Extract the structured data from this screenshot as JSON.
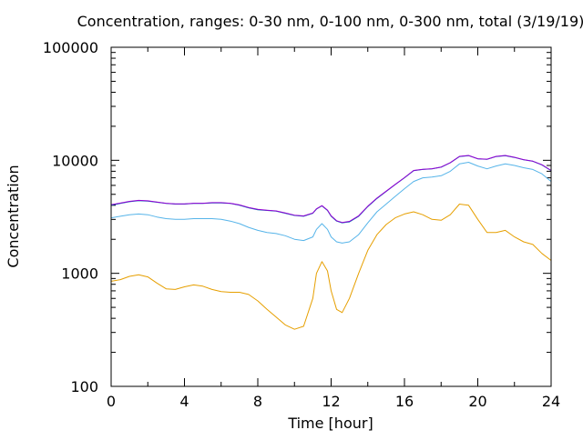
{
  "chart_data": {
    "type": "line",
    "title": "Concentration, ranges: 0-30 nm, 0-100 nm, 0-300 nm, total (3/19/19)",
    "xlabel": "Time [hour]",
    "ylabel": "Concentration",
    "xlim": [
      0,
      24
    ],
    "ylim": [
      100,
      100000
    ],
    "yscale": "log",
    "grid": false,
    "legend": "none",
    "x_ticks": [
      {
        "value": 0,
        "label": "0"
      },
      {
        "value": 4,
        "label": "4"
      },
      {
        "value": 8,
        "label": "8"
      },
      {
        "value": 12,
        "label": "12"
      },
      {
        "value": 16,
        "label": "16"
      },
      {
        "value": 20,
        "label": "20"
      },
      {
        "value": 24,
        "label": "24"
      }
    ],
    "y_ticks": [
      {
        "value": 100,
        "label": "100"
      },
      {
        "value": 1000,
        "label": "1000"
      },
      {
        "value": 10000,
        "label": "10000"
      },
      {
        "value": 100000,
        "label": "100000"
      }
    ],
    "x": [
      0,
      0.5,
      1,
      1.5,
      2,
      2.5,
      3,
      3.5,
      4,
      4.5,
      5,
      5.5,
      6,
      6.5,
      7,
      7.5,
      8,
      8.5,
      9,
      9.5,
      10,
      10.5,
      11,
      11.2,
      11.5,
      11.8,
      12,
      12.3,
      12.6,
      13,
      13.5,
      14,
      14.5,
      15,
      15.5,
      16,
      16.5,
      17,
      17.5,
      18,
      18.5,
      19,
      19.5,
      20,
      20.5,
      21,
      21.5,
      22,
      22.5,
      23,
      23.5,
      24
    ],
    "series": [
      {
        "color": "#e69f00",
        "values": [
          850,
          880,
          940,
          970,
          930,
          820,
          730,
          720,
          760,
          790,
          770,
          720,
          690,
          680,
          680,
          650,
          570,
          480,
          410,
          350,
          320,
          340,
          600,
          1000,
          1270,
          1050,
          700,
          480,
          450,
          600,
          1000,
          1600,
          2200,
          2700,
          3100,
          3350,
          3500,
          3300,
          3000,
          2950,
          3300,
          4100,
          4000,
          3000,
          2300,
          2300,
          2400,
          2100,
          1900,
          1800,
          1500,
          1300
        ]
      },
      {
        "color": "#56b4e9",
        "values": [
          3100,
          3200,
          3300,
          3350,
          3300,
          3150,
          3050,
          3000,
          3000,
          3050,
          3050,
          3050,
          3000,
          2900,
          2750,
          2550,
          2400,
          2300,
          2250,
          2150,
          2000,
          1950,
          2100,
          2450,
          2750,
          2450,
          2100,
          1900,
          1850,
          1900,
          2200,
          2800,
          3500,
          4100,
          4800,
          5600,
          6500,
          7000,
          7100,
          7300,
          8000,
          9300,
          9600,
          8900,
          8400,
          8900,
          9300,
          9000,
          8600,
          8300,
          7600,
          6500
        ]
      },
      {
        "color": "#0072b2",
        "values": [
          4000,
          4150,
          4300,
          4400,
          4350,
          4250,
          4150,
          4100,
          4100,
          4150,
          4150,
          4200,
          4200,
          4150,
          4000,
          3800,
          3650,
          3600,
          3550,
          3400,
          3250,
          3200,
          3400,
          3700,
          3950,
          3600,
          3200,
          2900,
          2800,
          2850,
          3200,
          3900,
          4600,
          5300,
          6100,
          7000,
          8100,
          8300,
          8400,
          8700,
          9500,
          10800,
          11000,
          10300,
          10200,
          10800,
          11000,
          10600,
          10100,
          9800,
          9100,
          8100
        ]
      },
      {
        "color": "#9400d3",
        "values": [
          4050,
          4180,
          4330,
          4420,
          4380,
          4270,
          4170,
          4120,
          4120,
          4170,
          4170,
          4220,
          4220,
          4170,
          4030,
          3830,
          3680,
          3620,
          3570,
          3420,
          3270,
          3220,
          3420,
          3720,
          3970,
          3630,
          3230,
          2920,
          2820,
          2880,
          3230,
          3930,
          4630,
          5330,
          6130,
          7030,
          8130,
          8330,
          8430,
          8730,
          9530,
          10830,
          11030,
          10330,
          10230,
          10830,
          11030,
          10630,
          10130,
          9830,
          9130,
          8130
        ]
      }
    ]
  }
}
